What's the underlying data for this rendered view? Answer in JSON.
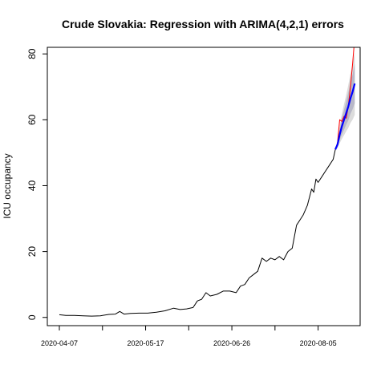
{
  "chart_data": {
    "type": "line",
    "title": "Crude Slovakia: Regression with ARIMA(4,2,1) errors",
    "xlabel": "",
    "ylabel": "ICU occupancy",
    "x_tick_labels": [
      "2020-04-07",
      "2020-05-17",
      "2020-06-26",
      "2020-08-05"
    ],
    "y_ticks": [
      0,
      20,
      40,
      60,
      80
    ],
    "xlim": [
      "2020-04-07",
      "2020-08-23"
    ],
    "ylim": [
      -2.5,
      82
    ],
    "grid": false,
    "colors": {
      "observed": "#000000",
      "actual_future": "#ff0000",
      "forecast": "#0000ff",
      "interval_outer": "#dcdcdc",
      "interval_inner": "#b8b8c8"
    },
    "series": [
      {
        "role": "observed",
        "x": [
          "2020-04-07",
          "2020-04-10",
          "2020-04-14",
          "2020-04-18",
          "2020-04-22",
          "2020-04-26",
          "2020-04-30",
          "2020-05-03",
          "2020-05-05",
          "2020-05-07",
          "2020-05-10",
          "2020-05-14",
          "2020-05-18",
          "2020-05-22",
          "2020-05-26",
          "2020-05-30",
          "2020-06-02",
          "2020-06-05",
          "2020-06-08",
          "2020-06-10",
          "2020-06-12",
          "2020-06-14",
          "2020-06-16",
          "2020-06-19",
          "2020-06-22",
          "2020-06-25",
          "2020-06-28",
          "2020-06-30",
          "2020-07-02",
          "2020-07-04",
          "2020-07-06",
          "2020-07-08",
          "2020-07-10",
          "2020-07-12",
          "2020-07-14",
          "2020-07-16",
          "2020-07-18",
          "2020-07-20",
          "2020-07-22",
          "2020-07-24",
          "2020-07-26",
          "2020-07-28",
          "2020-07-29",
          "2020-07-31",
          "2020-08-02",
          "2020-08-03",
          "2020-08-04",
          "2020-08-05",
          "2020-08-07",
          "2020-08-08",
          "2020-08-10",
          "2020-08-12",
          "2020-08-13"
        ],
        "y": [
          0.8,
          0.6,
          0.6,
          0.5,
          0.4,
          0.5,
          0.9,
          1.0,
          1.8,
          1.0,
          1.2,
          1.3,
          1.3,
          1.6,
          2.0,
          2.8,
          2.4,
          2.6,
          3.0,
          5.0,
          5.5,
          7.5,
          6.5,
          7.0,
          8.0,
          8.0,
          7.5,
          9.5,
          10.0,
          12.0,
          13.0,
          14.0,
          18.0,
          17.0,
          18.0,
          17.5,
          18.5,
          17.5,
          20.0,
          21.0,
          28.0,
          30.0,
          31.0,
          34.0,
          39.0,
          38.0,
          42.0,
          41.0,
          43.0,
          44.0,
          46.0,
          48.0,
          51.0
        ]
      },
      {
        "role": "actual",
        "x": [
          "2020-08-13",
          "2020-08-14",
          "2020-08-15",
          "2020-08-16",
          "2020-08-17",
          "2020-08-18",
          "2020-08-19",
          "2020-08-20",
          "2020-08-21",
          "2020-08-22"
        ],
        "y": [
          51.0,
          53.0,
          60.0,
          59.5,
          61.0,
          60.5,
          64.0,
          70.0,
          77.0,
          85.0
        ]
      },
      {
        "role": "forecast",
        "x": [
          "2020-08-13",
          "2020-08-14",
          "2020-08-15",
          "2020-08-16",
          "2020-08-17",
          "2020-08-18",
          "2020-08-19",
          "2020-08-20",
          "2020-08-21",
          "2020-08-22"
        ],
        "y": [
          51.0,
          52.5,
          55.5,
          58.0,
          60.0,
          62.0,
          64.0,
          66.5,
          68.5,
          71.0
        ],
        "lo80": [
          51.0,
          51.8,
          53.8,
          55.5,
          57.0,
          58.5,
          59.8,
          61.8,
          63.2,
          65.0
        ],
        "hi80": [
          51.0,
          53.2,
          57.2,
          60.5,
          63.0,
          65.5,
          68.2,
          71.2,
          73.8,
          77.0
        ],
        "lo95": [
          51.0,
          51.4,
          52.9,
          54.2,
          55.3,
          56.5,
          57.5,
          59.0,
          60.0,
          61.5
        ],
        "hi95": [
          51.0,
          53.6,
          58.1,
          61.8,
          64.7,
          67.5,
          70.5,
          74.0,
          77.0,
          80.5
        ]
      }
    ]
  }
}
